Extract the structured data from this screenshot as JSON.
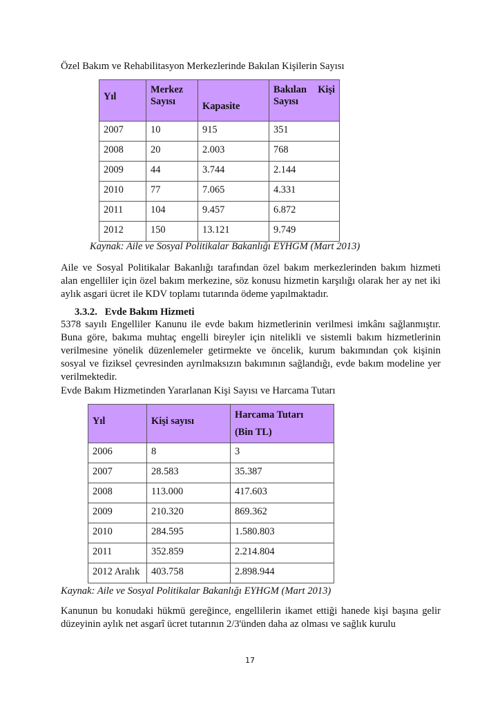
{
  "table1": {
    "title": "Özel Bakım ve Rehabilitasyon Merkezlerinde Bakılan Kişilerin Sayısı",
    "headers": [
      "Yıl",
      "Merkez Sayısı",
      "Kapasite",
      "Bakılan Kişi Sayısı"
    ],
    "rows": [
      [
        "2007",
        "10",
        "915",
        "351"
      ],
      [
        "2008",
        "20",
        "2.003",
        "768"
      ],
      [
        "2009",
        "44",
        "3.744",
        "2.144"
      ],
      [
        "2010",
        "77",
        "7.065",
        "4.331"
      ],
      [
        "2011",
        "104",
        "9.457",
        "6.872"
      ],
      [
        "2012",
        "150",
        "13.121",
        "9.749"
      ]
    ],
    "source": "Kaynak: Aile ve Sosyal Politikalar Bakanlığı EYHGM (Mart 2013)"
  },
  "paragraph1": "Aile ve Sosyal Politikalar Bakanlığı tarafından özel bakım merkezlerinden bakım hizmeti alan engelliler için özel bakım merkezine, söz konusu hizmetin karşılığı olarak her ay net iki aylık asgari ücret ile KDV toplamı tutarında ödeme yapılmaktadır.",
  "section": {
    "number": "3.3.2.",
    "title": "Evde Bakım Hizmeti"
  },
  "paragraph2": "5378 sayılı Engelliler Kanunu ile evde bakım hizmetlerinin verilmesi imkânı sağlanmıştır. Buna göre, bakıma muhtaç engelli bireyler için nitelikli ve sistemli bakım hizmetlerinin verilmesine yönelik düzenlemeler getirmekte ve öncelik, kurum bakımından çok kişinin sosyal ve fiziksel çevresinden ayrılmaksızın bakımının sağlandığı, evde bakım modeline yer verilmektedir.",
  "table2": {
    "title": "Evde Bakım Hizmetinden Yararlanan Kişi Sayısı ve Harcama Tutarı",
    "headers": [
      "Yıl",
      "Kişi sayısı",
      "Harcama Tutarı",
      "(Bin TL)"
    ],
    "rows": [
      [
        "2006",
        "8",
        "3"
      ],
      [
        "2007",
        "28.583",
        "35.387"
      ],
      [
        "2008",
        "113.000",
        "417.603"
      ],
      [
        "2009",
        "210.320",
        "869.362"
      ],
      [
        "2010",
        "284.595",
        "1.580.803"
      ],
      [
        "2011",
        "352.859",
        "2.214.804"
      ],
      [
        "2012 Aralık",
        "403.758",
        "2.898.944"
      ]
    ],
    "source": "Kaynak: Aile ve Sosyal Politikalar Bakanlığı EYHGM (Mart 2013)"
  },
  "paragraph3": "Kanunun bu konudaki hükmü gereğince, engellilerin ikamet ettiği hanede kişi başına gelir düzeyinin aylık net asgarî ücret tutarının 2/3'ünden daha az olması ve sağlık kurulu",
  "page_number": "17",
  "colors": {
    "table_header": "#cc99ff"
  }
}
